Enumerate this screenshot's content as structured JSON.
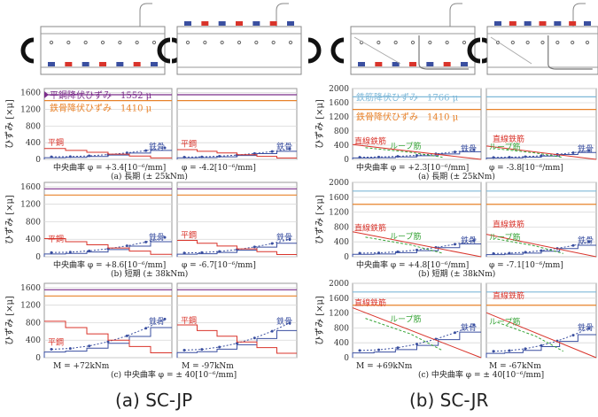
{
  "captions": {
    "a": "(a) SC-JP",
    "b": "(b) SC-JR"
  },
  "colors": {
    "steel": "#3a4fa0",
    "flange": "#d9342b",
    "loop": "#3aa53a",
    "yield_flange": "#7b2d8b",
    "yield_steel": "#e8822a",
    "rebar_yield": "#7fb8d8",
    "frame": "#9a9a9a",
    "grid": "#d8d8d8"
  },
  "ylabel": "ひずみ [×μ]",
  "left": {
    "ann_flange_yield": "平鋼降伏ひずみ　1552 μ",
    "ann_steel_yield": "鉄骨降伏ひずみ　1410 μ",
    "label_flange": "平鋼",
    "label_steel": "鉄骨",
    "rows": [
      {
        "curv_left": "中央曲率 φ = +3.4[10⁻⁶/mm]",
        "curv_right": "φ = -4.2[10⁻⁶/mm]",
        "sub": "(a)  長期  (± 25kNm)"
      },
      {
        "curv_left": "中央曲率 φ = +8.6[10⁻⁶/mm]",
        "curv_right": "φ = -6.7[10⁻⁶/mm]",
        "sub": "(b)  短期  (± 38kNm)"
      },
      {
        "curv_left": "M = +72kNm",
        "curv_right": "M = -97kNm",
        "sub": "(c)  中央曲率 φ = ± 40[10⁻⁶/mm]"
      }
    ]
  },
  "right": {
    "ann_rebar_yield": "鉄筋降伏ひずみ　1766 μ",
    "ann_steel_yield": "鉄骨降伏ひずみ　1410 μ",
    "label_straight": "直線鉄筋",
    "label_loop": "ループ筋",
    "label_steel": "鉄骨",
    "rows": [
      {
        "curv_left": "中央曲率 φ = +2.3[10⁻⁶/mm]",
        "curv_right": "φ = -3.8[10⁻⁶/mm]",
        "sub": "(a)  長期  (± 25kNm)"
      },
      {
        "curv_left": "中央曲率 φ = +4.8[10⁻⁶/mm]",
        "curv_right": "φ = -7.1[10⁻⁶/mm]",
        "sub": "(b)  短期  (± 38kNm)"
      },
      {
        "curv_left": "M = +69kNm",
        "curv_right": "M = -67kNm",
        "sub": "(c)  中央曲率 φ = ± 40[10⁻⁶/mm]"
      }
    ]
  },
  "chart_data": [
    {
      "type": "line",
      "panel": "SC-JP",
      "yticks": [
        0,
        400,
        800,
        1200,
        1600
      ],
      "ylim": [
        0,
        1700
      ],
      "series": [
        {
          "name": "平鋼降伏ひずみ",
          "values": [
            1552
          ]
        },
        {
          "name": "鉄骨降伏ひずみ",
          "values": [
            1410
          ]
        }
      ]
    },
    {
      "type": "line",
      "panel": "SC-JR",
      "yticks": [
        0,
        400,
        800,
        1200,
        1600,
        2000
      ],
      "ylim": [
        0,
        2000
      ],
      "series": [
        {
          "name": "鉄筋降伏ひずみ",
          "values": [
            1766
          ]
        },
        {
          "name": "鉄骨降伏ひずみ",
          "values": [
            1410
          ]
        }
      ]
    }
  ]
}
